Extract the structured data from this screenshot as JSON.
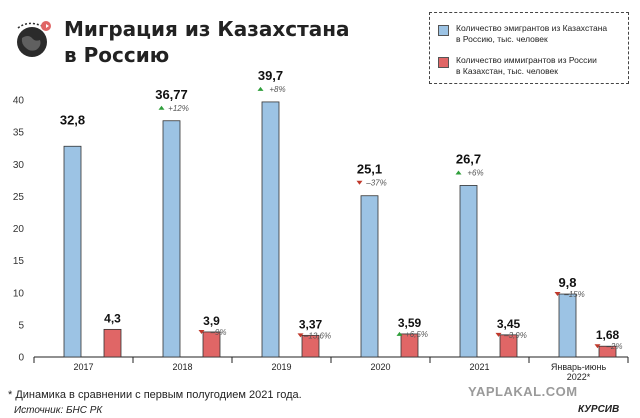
{
  "header": {
    "title_line1": "Миграция из Казахстана",
    "title_line2": "в Россию",
    "logo_icon": "globe-plane-icon"
  },
  "legend": {
    "items": [
      {
        "label_line1": "Количество эмигрантов из Казахстана",
        "label_line2": "в Россию, тыс. человек",
        "color": "#9cc3e4"
      },
      {
        "label_line1": "Количество иммигрантов из России",
        "label_line2": "в Казахстан, тыс. человек",
        "color": "#e06666"
      }
    ]
  },
  "chart_data": {
    "type": "bar",
    "categories": [
      "2017",
      "2018",
      "2019",
      "2020",
      "2021",
      "Январь-июнь 2022*"
    ],
    "series": [
      {
        "name": "Количество эмигрантов из Казахстана в Россию, тыс. человек",
        "color": "#9cc3e4",
        "values": [
          32.8,
          36.77,
          39.7,
          25.1,
          26.7,
          9.8
        ],
        "labels": [
          "32,8",
          "36,77",
          "39,7",
          "25,1",
          "26,7",
          "9,8"
        ],
        "changes": [
          "",
          "+12%",
          "+8%",
          "–37%",
          "+6%",
          "–15%"
        ],
        "change_dirs": [
          "",
          "up",
          "up",
          "down",
          "up",
          "down"
        ]
      },
      {
        "name": "Количество иммигрантов из России в Казахстан, тыс. человек",
        "color": "#e06666",
        "values": [
          4.3,
          3.9,
          3.37,
          3.59,
          3.45,
          1.68
        ],
        "labels": [
          "4,3",
          "3,9",
          "3,37",
          "3,59",
          "3,45",
          "1,68"
        ],
        "changes": [
          "",
          "–9%",
          "–13,6%",
          "+6,5%",
          "–3,9%",
          "–2%"
        ],
        "change_dirs": [
          "",
          "down",
          "down",
          "up",
          "down",
          "down"
        ]
      }
    ],
    "ylim": [
      0,
      40
    ],
    "yticks": [
      0,
      5,
      10,
      15,
      20,
      25,
      30,
      35,
      40
    ],
    "grid": false,
    "legend_position": "top-right",
    "up_color": "#2e9e3a",
    "down_color": "#c0392b"
  },
  "footer": {
    "footnote": "* Динамика в сравнении с первым полугодием 2021 года.",
    "source": "Источник: БНС РК",
    "watermark": "YAPLAKAL.COM",
    "brand": "КУРСИВ"
  }
}
